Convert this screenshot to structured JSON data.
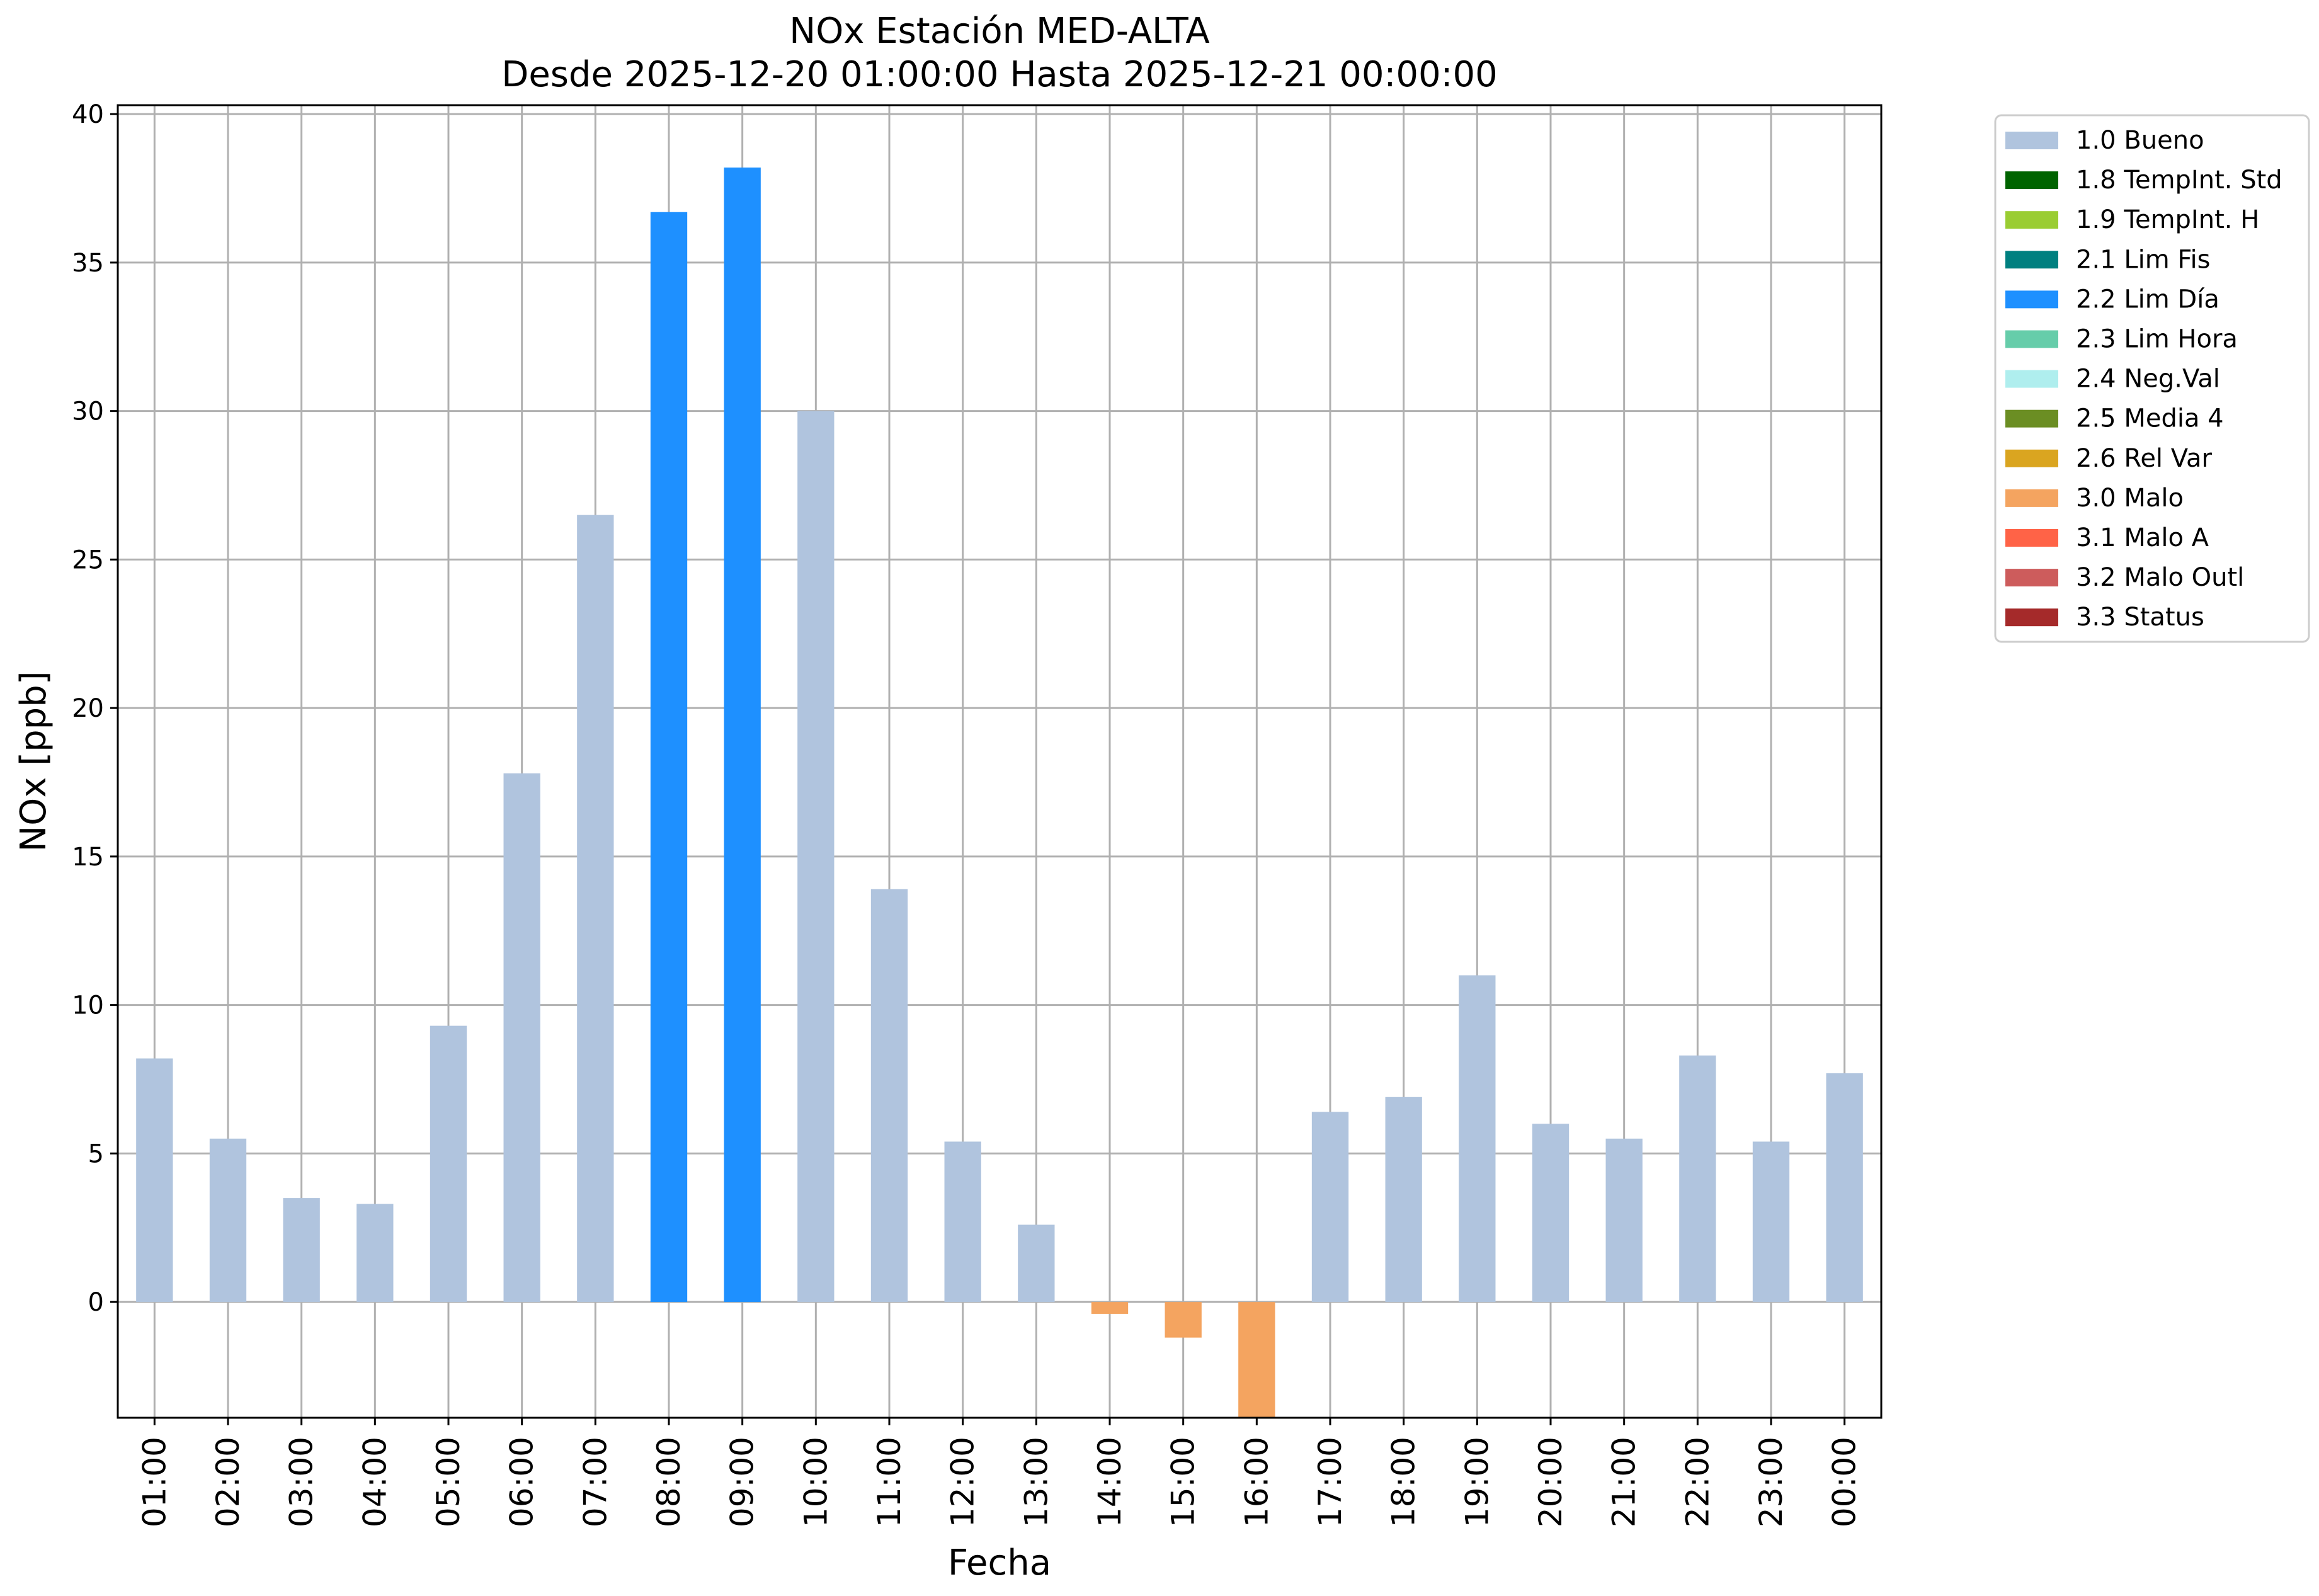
{
  "chart_data": {
    "type": "bar",
    "title_line1": "NOx Estación MED-ALTA",
    "title_line2": "Desde 2025-12-20 01:00:00 Hasta 2025-12-21 00:00:00",
    "xlabel": "Fecha",
    "ylabel": "NOx [ppb]",
    "ylim": [
      -3.9,
      40.3
    ],
    "yticks": [
      0,
      5,
      10,
      15,
      20,
      25,
      30,
      35,
      40
    ],
    "grid": true,
    "legend_position": "outside-top-right",
    "categories": [
      "01:00",
      "02:00",
      "03:00",
      "04:00",
      "05:00",
      "06:00",
      "07:00",
      "08:00",
      "09:00",
      "10:00",
      "11:00",
      "12:00",
      "13:00",
      "14:00",
      "15:00",
      "16:00",
      "17:00",
      "18:00",
      "19:00",
      "20:00",
      "21:00",
      "22:00",
      "23:00",
      "00:00"
    ],
    "values": [
      8.2,
      5.5,
      3.5,
      3.3,
      9.3,
      17.8,
      26.5,
      36.7,
      38.2,
      30.0,
      13.9,
      5.4,
      2.6,
      -0.4,
      -1.2,
      -3.9,
      6.4,
      6.9,
      11.0,
      6.0,
      5.5,
      8.3,
      5.4,
      7.7
    ],
    "flags": [
      "1.0 Bueno",
      "1.0 Bueno",
      "1.0 Bueno",
      "1.0 Bueno",
      "1.0 Bueno",
      "1.0 Bueno",
      "1.0 Bueno",
      "2.2 Lim Día",
      "2.2 Lim Día",
      "1.0 Bueno",
      "1.0 Bueno",
      "1.0 Bueno",
      "1.0 Bueno",
      "3.0 Malo",
      "3.0 Malo",
      "3.0 Malo",
      "1.0 Bueno",
      "1.0 Bueno",
      "1.0 Bueno",
      "1.0 Bueno",
      "1.0 Bueno",
      "1.0 Bueno",
      "1.0 Bueno",
      "1.0 Bueno"
    ],
    "legend": [
      {
        "label": "1.0 Bueno",
        "color": "#b0c4de"
      },
      {
        "label": "1.8 TempInt. Std",
        "color": "#006400"
      },
      {
        "label": "1.9 TempInt. H",
        "color": "#9acd32"
      },
      {
        "label": "2.1 Lim Fis",
        "color": "#008080"
      },
      {
        "label": "2.2 Lim Día",
        "color": "#1e90ff"
      },
      {
        "label": "2.3 Lim Hora",
        "color": "#66cdaa"
      },
      {
        "label": "2.4 Neg.Val",
        "color": "#afeeee"
      },
      {
        "label": "2.5 Media 4",
        "color": "#6b8e23"
      },
      {
        "label": "2.6 Rel Var",
        "color": "#daa520"
      },
      {
        "label": "3.0 Malo",
        "color": "#f4a460"
      },
      {
        "label": "3.1 Malo A",
        "color": "#ff6347"
      },
      {
        "label": "3.2 Malo Outl",
        "color": "#cd5c5c"
      },
      {
        "label": "3.3 Status",
        "color": "#a52a2a"
      }
    ]
  }
}
